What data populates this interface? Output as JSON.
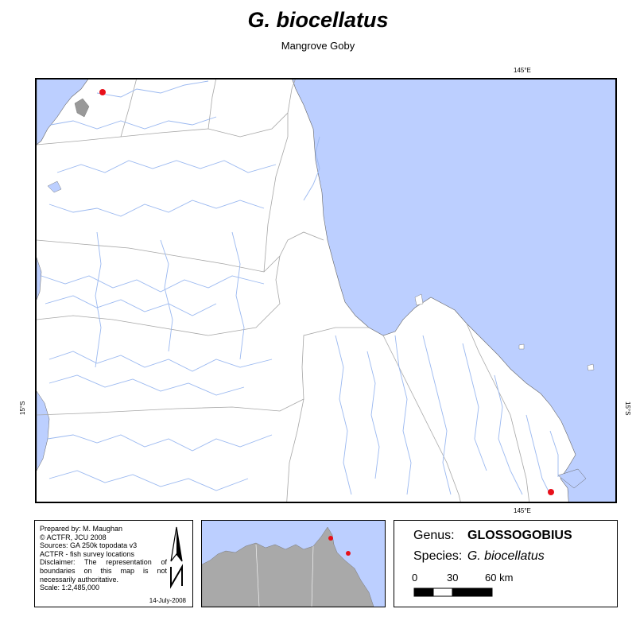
{
  "title": "G. biocellatus",
  "subtitle": "Mangrove Goby",
  "coords": {
    "top_lon": "145°E",
    "bottom_lon": "145°E",
    "left_lat": "15°S",
    "right_lat": "15°S"
  },
  "credits": {
    "lines": [
      "Prepared by: M. Maughan",
      "© ACTFR, JCU 2008",
      "Sources: GA 250k topodata v3",
      "ACTFR - fish survey locations",
      "Disclaimer: The representation of boundaries on this map is not necessarily authoritative.",
      "Scale: 1:2,485,000"
    ],
    "date": "14-July-2008"
  },
  "legend": {
    "genus_label": "Genus:",
    "genus_value": "GLOSSOGOBIUS",
    "species_label": "Species:",
    "species_value": "G. biocellatus",
    "scale_ticks": [
      "0",
      "30",
      "60 km"
    ]
  },
  "colors": {
    "sea": "#bccfff",
    "river": "#9ab8f0",
    "boundary": "#a6a6a6",
    "record": "#e8101a",
    "inset_land": "#a9a9a9"
  },
  "records": [
    {
      "location": "north-west coast"
    },
    {
      "location": "south-east coast"
    }
  ]
}
